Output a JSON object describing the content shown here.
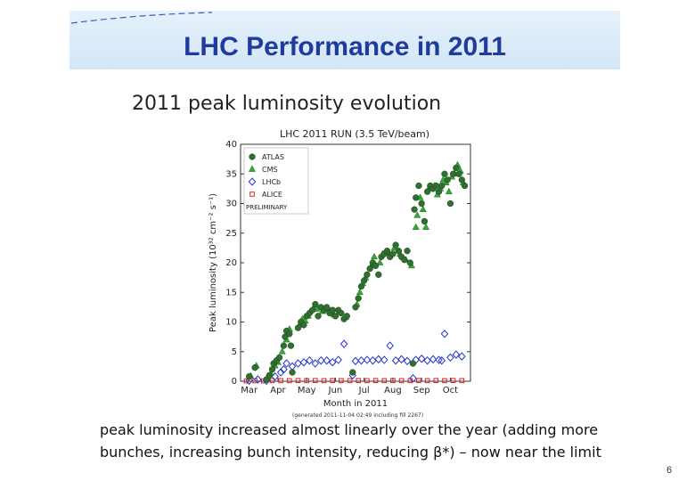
{
  "slide": {
    "title": "LHC Performance in 2011",
    "subtitle": "2011 peak luminosity evolution",
    "caption_line1": "peak luminosity increased almost linearly over the year (adding more",
    "caption_line2": "bunches, increasing bunch intensity, reducing β*) – now near the limit",
    "page_number": "6",
    "accent_color": "#1f3b9e"
  },
  "chart_data": {
    "type": "scatter",
    "title": "LHC 2011 RUN (3.5 TeV/beam)",
    "xlabel": "Month in 2011",
    "ylabel": "Peak luminosity (10³² cm⁻² s⁻¹)",
    "generated_note": "(generated 2011-11-04 02:49 including fill 2267)",
    "preliminary": "PRELIMINARY",
    "ylim": [
      0,
      40
    ],
    "yticks": [
      0,
      5,
      10,
      15,
      20,
      25,
      30,
      35,
      40
    ],
    "xlim": [
      0,
      8
    ],
    "month_ticks": [
      "Mar",
      "Apr",
      "May",
      "Jun",
      "Jul",
      "Aug",
      "Sep",
      "Oct"
    ],
    "legend": [
      {
        "name": "ATLAS",
        "marker": "circle",
        "color": "#2f6f2f"
      },
      {
        "name": "CMS",
        "marker": "triangle",
        "color": "#33aa33"
      },
      {
        "name": "LHCb",
        "marker": "diamond",
        "color": "#2233cc"
      },
      {
        "name": "ALICE",
        "marker": "square",
        "color": "#dd2222"
      }
    ],
    "series": [
      {
        "name": "ATLAS",
        "color": "#2f6f2f",
        "x": [
          0.3,
          0.5,
          0.9,
          1.0,
          1.1,
          1.15,
          1.25,
          1.35,
          1.5,
          1.55,
          1.6,
          1.7,
          1.75,
          1.8,
          2.0,
          2.1,
          2.2,
          2.3,
          2.4,
          2.5,
          2.6,
          2.7,
          2.8,
          2.9,
          3.0,
          3.1,
          3.2,
          3.3,
          3.4,
          3.5,
          3.6,
          3.7,
          3.9,
          4.0,
          4.1,
          4.2,
          4.3,
          4.4,
          4.5,
          4.6,
          4.7,
          4.8,
          4.9,
          5.0,
          5.1,
          5.2,
          5.3,
          5.4,
          5.5,
          5.6,
          5.7,
          5.8,
          5.9,
          6.0,
          6.05,
          6.1,
          6.2,
          6.3,
          6.4,
          6.5,
          6.6,
          6.7,
          6.8,
          6.9,
          7.0,
          7.1,
          7.2,
          7.3,
          7.4,
          7.5,
          7.6,
          7.7,
          7.8
        ],
        "values": [
          0.8,
          2.3,
          0.3,
          1.0,
          2.0,
          3.0,
          3.5,
          4.0,
          6.0,
          7.5,
          8.5,
          8.0,
          6.0,
          1.5,
          9.0,
          10.0,
          9.5,
          11.0,
          11.5,
          12.0,
          13.0,
          11.0,
          12.5,
          12.0,
          12.5,
          11.5,
          12.0,
          11.0,
          12.0,
          11.5,
          10.5,
          11.0,
          1.5,
          12.5,
          14.0,
          16.0,
          17.0,
          18.0,
          19.0,
          20.0,
          19.5,
          18.0,
          21.0,
          21.5,
          22.0,
          21.0,
          21.5,
          23.0,
          22.0,
          21.0,
          20.5,
          22.0,
          20.0,
          3.0,
          29.0,
          31.0,
          33.0,
          30.0,
          27.0,
          32.0,
          33.0,
          32.5,
          33.0,
          32.0,
          33.0,
          35.0,
          34.0,
          30.0,
          35.0,
          36.0,
          35.0,
          34.0,
          33.0
        ]
      },
      {
        "name": "CMS",
        "color": "#33aa33",
        "x": [
          0.35,
          0.55,
          0.95,
          1.05,
          1.2,
          1.3,
          1.45,
          1.6,
          1.7,
          2.05,
          2.15,
          2.25,
          2.35,
          2.55,
          2.65,
          2.85,
          3.05,
          3.25,
          3.45,
          3.65,
          4.05,
          4.15,
          4.25,
          4.35,
          4.55,
          4.65,
          4.85,
          4.95,
          5.15,
          5.35,
          5.55,
          5.75,
          5.95,
          6.1,
          6.15,
          6.25,
          6.35,
          6.45,
          6.55,
          6.75,
          6.85,
          6.95,
          7.05,
          7.15,
          7.25,
          7.35,
          7.45,
          7.55,
          7.65,
          7.75
        ],
        "values": [
          0.9,
          2.6,
          0.5,
          1.3,
          2.6,
          3.2,
          5.0,
          7.0,
          8.8,
          9.5,
          10.5,
          10.2,
          11.0,
          12.5,
          12.2,
          11.8,
          12.3,
          11.2,
          11.8,
          10.8,
          13.0,
          15.0,
          16.5,
          17.5,
          19.5,
          21.0,
          20.0,
          21.5,
          21.8,
          22.5,
          21.5,
          20.5,
          19.5,
          26.0,
          28.0,
          31.0,
          29.0,
          26.0,
          32.5,
          33.0,
          31.5,
          32.5,
          34.0,
          33.5,
          32.0,
          34.5,
          35.0,
          36.5,
          35.5,
          33.5
        ]
      },
      {
        "name": "LHCb",
        "color": "#2233cc",
        "x": [
          0.3,
          0.6,
          0.9,
          1.2,
          1.4,
          1.5,
          1.6,
          1.8,
          2.0,
          2.2,
          2.4,
          2.6,
          2.8,
          3.0,
          3.2,
          3.4,
          3.6,
          3.9,
          4.0,
          4.2,
          4.4,
          4.6,
          4.8,
          5.0,
          5.2,
          5.4,
          5.6,
          5.8,
          6.0,
          6.1,
          6.3,
          6.5,
          6.7,
          6.9,
          7.0,
          7.1,
          7.3,
          7.5,
          7.7
        ],
        "values": [
          0.1,
          0.3,
          0.1,
          0.8,
          1.5,
          2.0,
          3.0,
          2.5,
          3.0,
          3.2,
          3.5,
          3.0,
          3.5,
          3.5,
          3.2,
          3.6,
          6.3,
          1.0,
          3.4,
          3.5,
          3.6,
          3.5,
          3.7,
          3.6,
          6.0,
          3.5,
          3.7,
          3.4,
          0.5,
          3.6,
          3.8,
          3.5,
          3.7,
          3.6,
          3.5,
          8.0,
          4.0,
          4.5,
          4.2
        ]
      },
      {
        "name": "ALICE",
        "color": "#dd2222",
        "x": [
          0.2,
          0.5,
          0.8,
          1.1,
          1.4,
          1.7,
          2.0,
          2.3,
          2.6,
          2.9,
          3.2,
          3.5,
          3.8,
          4.1,
          4.4,
          4.7,
          5.0,
          5.3,
          5.6,
          5.9,
          6.2,
          6.5,
          6.8,
          7.1,
          7.4,
          7.7
        ],
        "values": [
          0.05,
          0.08,
          0.05,
          0.1,
          0.1,
          0.1,
          0.12,
          0.1,
          0.12,
          0.1,
          0.12,
          0.1,
          0.1,
          0.12,
          0.1,
          0.12,
          0.1,
          0.12,
          0.1,
          0.1,
          0.12,
          0.1,
          0.12,
          0.1,
          0.12,
          0.1
        ]
      }
    ]
  }
}
